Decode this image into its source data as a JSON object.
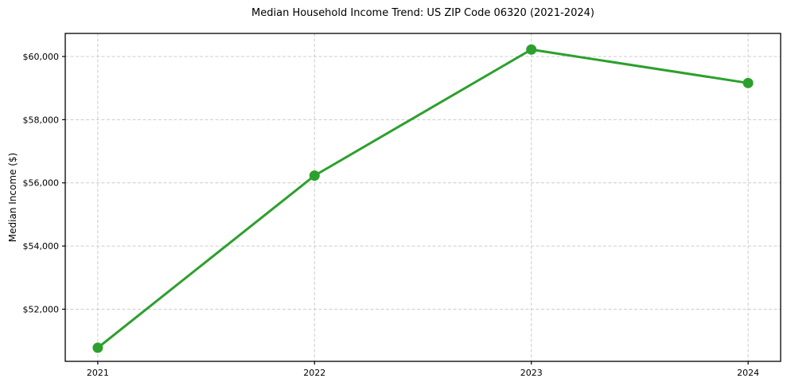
{
  "figure": {
    "title": "Median Household Income Trend: US ZIP Code 06320 (2021-2024)",
    "y_axis_label": "Median Income ($)"
  },
  "chart_data": {
    "type": "line",
    "title": "Median Household Income Trend: US ZIP Code 06320 (2021-2024)",
    "xlabel": "",
    "ylabel": "Median Income ($)",
    "categories": [
      2021,
      2022,
      2023,
      2024
    ],
    "x_tick_labels": [
      "2021",
      "2022",
      "2023",
      "2024"
    ],
    "values": [
      50780,
      56230,
      60220,
      59160
    ],
    "y_ticks": [
      52000,
      54000,
      56000,
      58000,
      60000
    ],
    "y_tick_labels": [
      "$52,000",
      "$54,000",
      "$56,000",
      "$58,000",
      "$60,000"
    ],
    "xlim": [
      2020.85,
      2024.15
    ],
    "ylim": [
      50350,
      60730
    ],
    "grid": true,
    "grid_style": "dashed",
    "legend": false,
    "marker": "circle",
    "colors": {
      "line": "#2ca02c",
      "marker": "#2ca02c",
      "grid": "#cccccc",
      "spine": "#000000",
      "tick_text": "#000000",
      "background": "#ffffff"
    }
  }
}
